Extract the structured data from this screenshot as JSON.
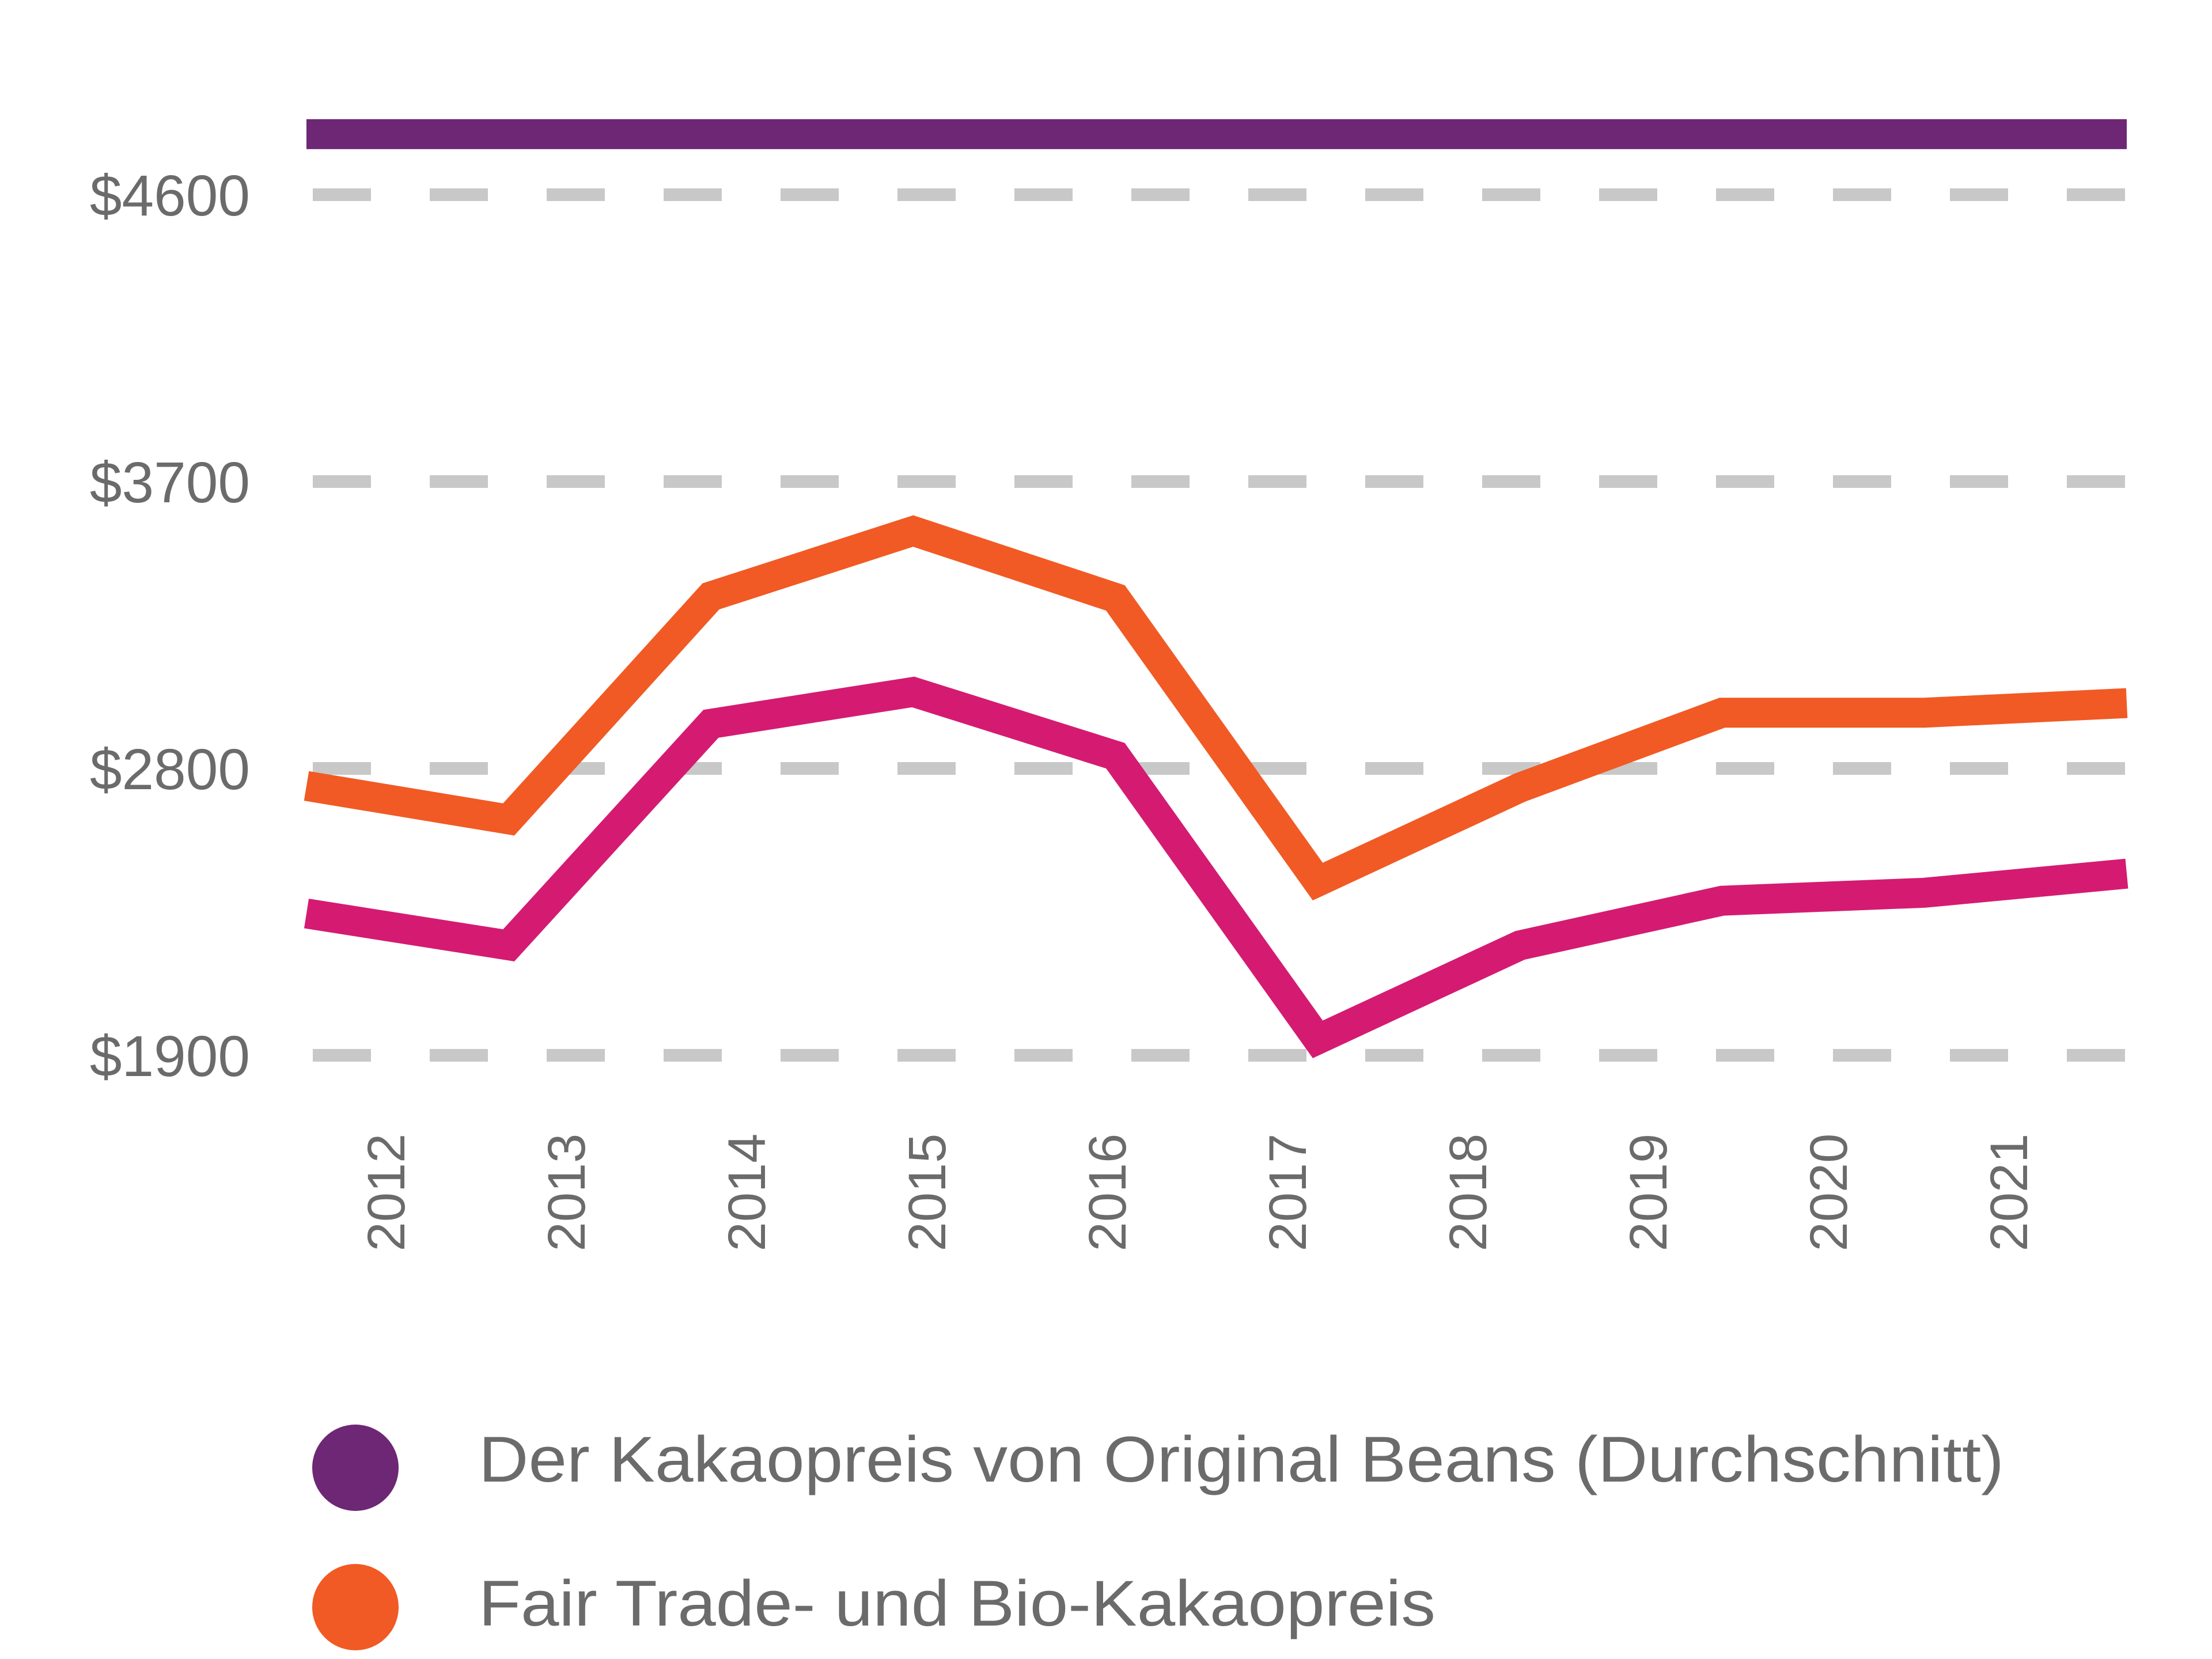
{
  "chart_data": {
    "type": "line",
    "title": "",
    "xlabel": "",
    "ylabel": "",
    "categories": [
      "2012",
      "2013",
      "2014",
      "2015",
      "2016",
      "2017",
      "2018",
      "2019",
      "2020",
      "2021"
    ],
    "y_ticks": [
      "$1900",
      "$2800",
      "$3700",
      "$4600"
    ],
    "y_tick_values": [
      1900,
      2800,
      3700,
      4600
    ],
    "ylim": [
      1900,
      4600
    ],
    "grid": "horizontal dashed",
    "legend_position": "bottom",
    "series": [
      {
        "name": "Der Kakaopreis von Original Beans (Durchschnitt)",
        "color": "#6e2774",
        "values": [
          4790,
          4790,
          4790,
          4790,
          4790,
          4790,
          4790,
          4790,
          4790,
          4790
        ]
      },
      {
        "name": "Fair Trade- und Bio-Kakaopreis",
        "color": "#f15a24",
        "values": [
          2745,
          2640,
          3340,
          3545,
          3335,
          2445,
          2740,
          2975,
          2975,
          3005
        ]
      },
      {
        "name": "",
        "color": "#d41b71",
        "values": [
          2345,
          2245,
          2940,
          3040,
          2840,
          1950,
          2245,
          2385,
          2410,
          2470
        ]
      }
    ]
  },
  "axis": {
    "y_labels": [
      "$4600",
      "$3700",
      "$2800",
      "$1900"
    ],
    "x_labels": [
      "2012",
      "2013",
      "2014",
      "2015",
      "2016",
      "2017",
      "2018",
      "2019",
      "2020",
      "2021"
    ]
  },
  "legend": {
    "items": [
      {
        "label": "Der Kakaopreis von Original Beans (Durchschnitt)",
        "color": "#6e2774"
      },
      {
        "label": "Fair Trade- und Bio-Kakaopreis",
        "color": "#f15a24"
      }
    ]
  }
}
